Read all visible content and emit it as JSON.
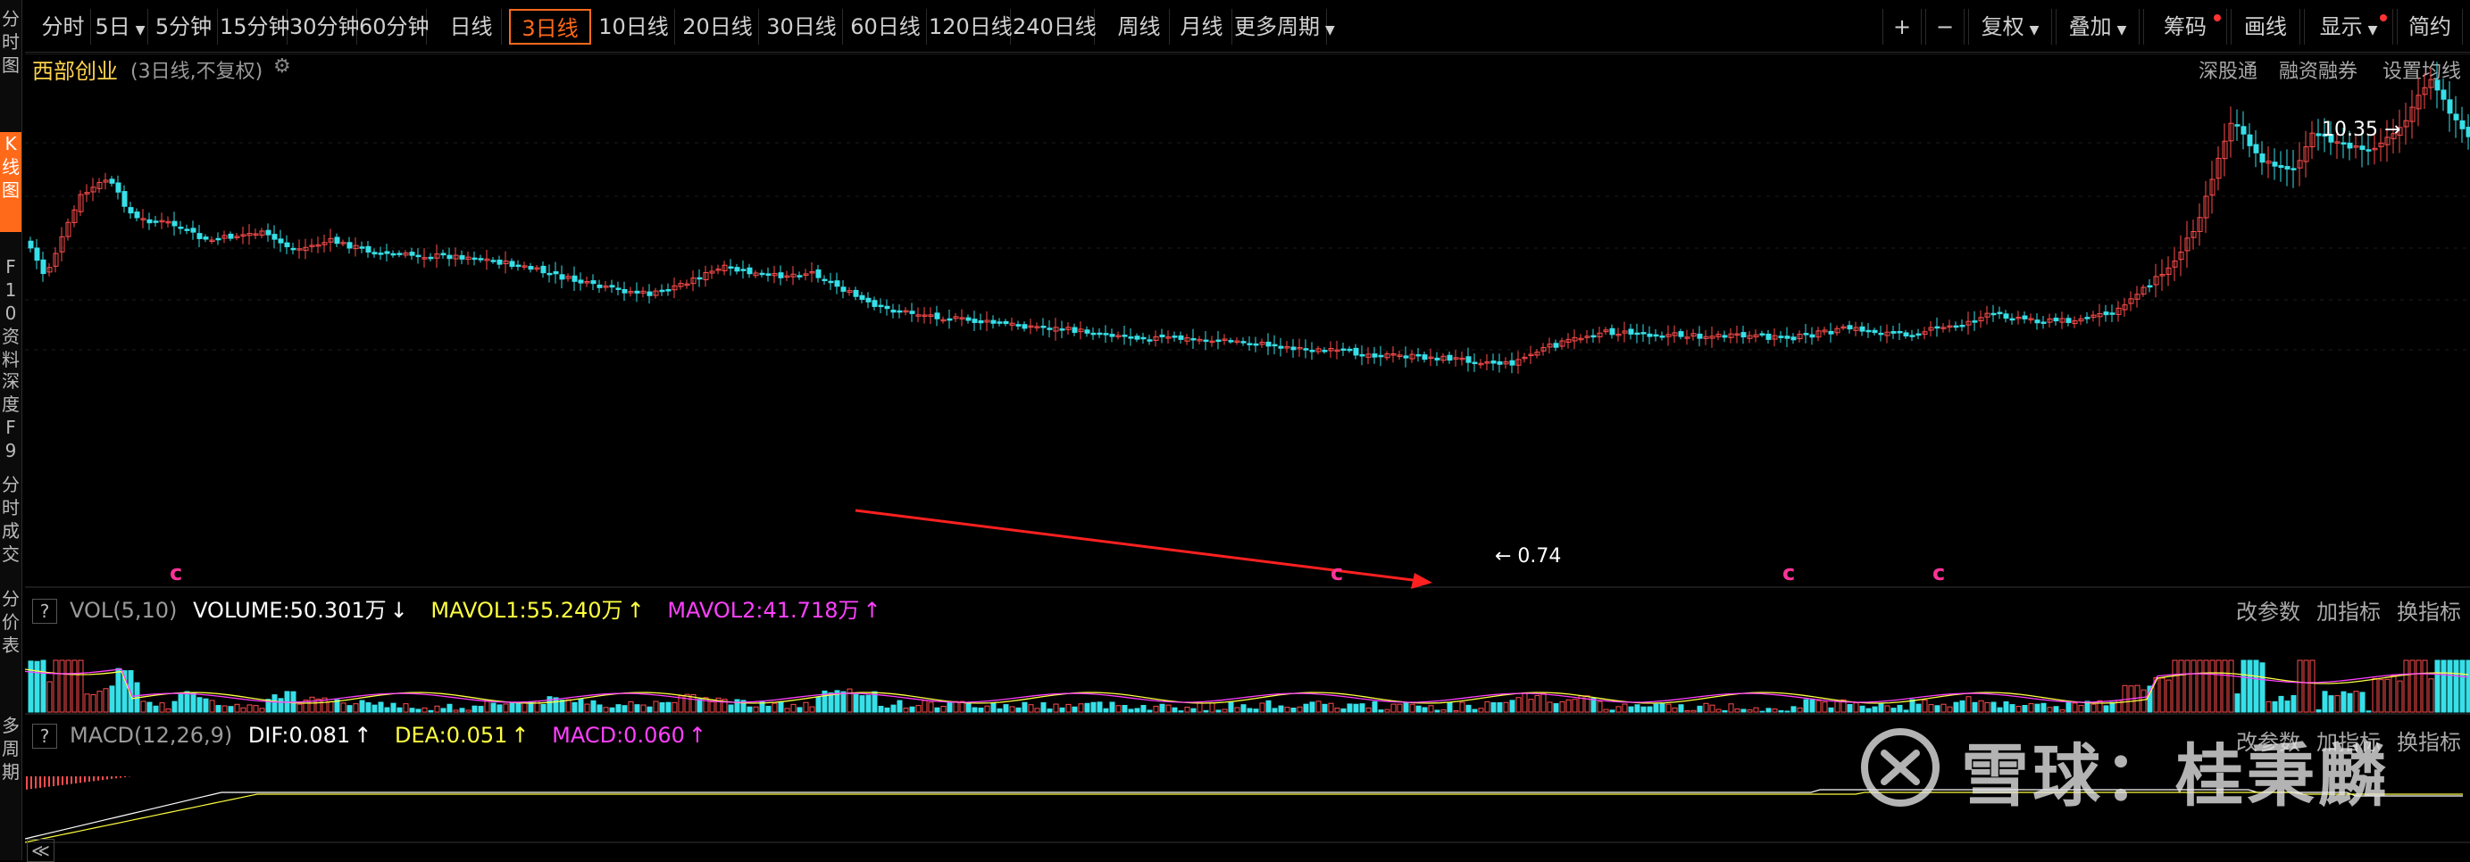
{
  "toolbar": {
    "items": [
      {
        "label": "分时"
      },
      {
        "label": "5日",
        "caret": "▼"
      },
      {
        "label": "5分钟"
      },
      {
        "label": "15分钟"
      },
      {
        "label": "30分钟"
      },
      {
        "label": "60分钟"
      },
      {
        "label": "日线"
      },
      {
        "label": "3日线",
        "active": true
      },
      {
        "label": "10日线"
      },
      {
        "label": "20日线"
      },
      {
        "label": "30日线"
      },
      {
        "label": "60日线"
      },
      {
        "label": "120日线"
      },
      {
        "label": "240日线"
      },
      {
        "label": "周线"
      },
      {
        "label": "月线"
      },
      {
        "label": "更多周期",
        "caret": "▼"
      }
    ],
    "right_items": [
      {
        "label": "+"
      },
      {
        "label": "−"
      },
      {
        "label": "复权",
        "caret": "▼"
      },
      {
        "label": "叠加",
        "caret": "▼"
      },
      {
        "label": "筹码",
        "dot": true
      },
      {
        "label": "画线"
      },
      {
        "label": "显示",
        "caret": "▼",
        "dot": true
      },
      {
        "label": "简约"
      }
    ]
  },
  "left_tabs": [
    {
      "label": "分时图"
    },
    {
      "label": "K线图",
      "active": true
    },
    {
      "label": "F10资料"
    },
    {
      "label": "深度F9"
    },
    {
      "label": "分时成交"
    },
    {
      "label": "分价表"
    },
    {
      "label": "多周期"
    }
  ],
  "header": {
    "stock_name": "西部创业",
    "subtitle": "(3日线,不复权)",
    "gear_icon": "⚙",
    "links": [
      "深股通",
      "融资融券",
      "设置均线"
    ]
  },
  "price_annotations": {
    "high": "10.35",
    "low": "0.74",
    "marker": "c"
  },
  "vol": {
    "name": "VOL(5,10)",
    "volume": "VOLUME:50.301万",
    "volume_arrow": "↓",
    "mavol1": "MAVOL1:55.240万",
    "mavol1_arrow": "↑",
    "mavol2": "MAVOL2:41.718万",
    "mavol2_arrow": "↑",
    "links": [
      "改参数",
      "加指标",
      "换指标"
    ]
  },
  "macd": {
    "name": "MACD(12,26,9)",
    "dif": "DIF:0.081",
    "dif_arrow": "↑",
    "dea": "DEA:0.051",
    "dea_arrow": "↑",
    "macd": "MACD:0.060",
    "macd_arrow": "↑",
    "links": [
      "改参数",
      "加指标",
      "换指标"
    ]
  },
  "watermark": "雪球：桂秉麟",
  "bottom_button": "≪",
  "colors": {
    "up": "#ff4d4d",
    "down": "#36e0e8",
    "accent": "#ff6a1a",
    "title": "#ffd34d",
    "mavol1": "#ffff40",
    "mavol2": "#ff40ff",
    "trend_arrow": "#ff2020"
  }
}
